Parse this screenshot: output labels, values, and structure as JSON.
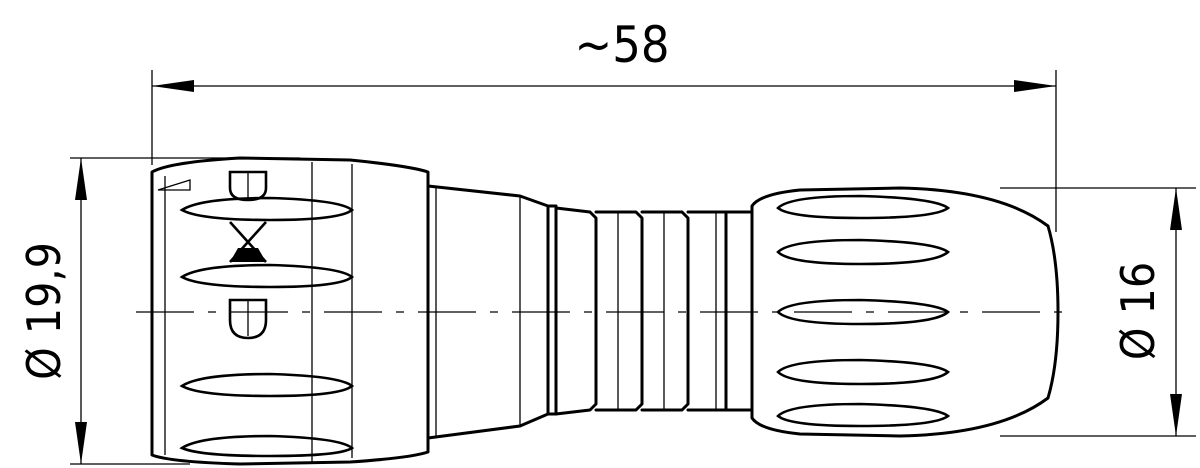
{
  "drawing": {
    "dimensions": {
      "length_label": "~58",
      "diameter_left_label": "Ø 19,9",
      "diameter_right_label": "Ø 16"
    },
    "colors": {
      "line": "#000000",
      "background": "#ffffff"
    }
  }
}
